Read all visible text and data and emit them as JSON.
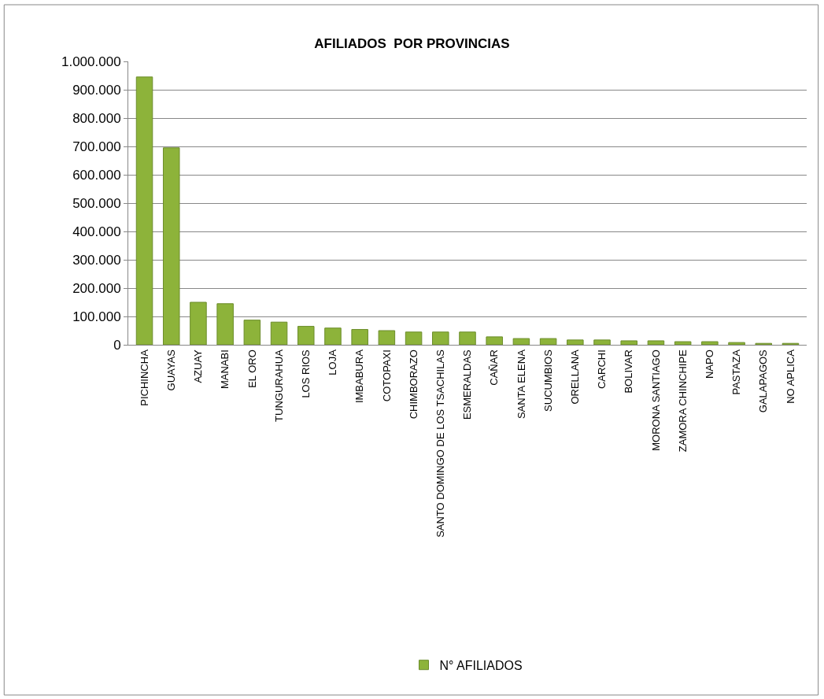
{
  "chart_data": {
    "type": "bar",
    "title": "AFILIADOS  POR PROVINCIAS",
    "categories": [
      "PICHINCHA",
      "GUAYAS",
      "AZUAY",
      "MANABI",
      "EL ORO",
      "TUNGURAHUA",
      "LOS RIOS",
      "LOJA",
      "IMBABURA",
      "COTOPAXI",
      "CHIMBORAZO",
      "SANTO DOMINGO DE LOS TSACHILAS",
      "ESMERALDAS",
      "CAÑAR",
      "SANTA ELENA",
      "SUCUMBIOS",
      "ORELLANA",
      "CARCHI",
      "BOLIVAR",
      "MORONA SANTIAGO",
      "ZAMORA CHINCHIPE",
      "NAPO",
      "PASTAZA",
      "GALAPAGOS",
      "NO APLICA"
    ],
    "series": [
      {
        "name": "N° AFILIADOS",
        "color": "#8db33a",
        "values": [
          945000,
          695000,
          150000,
          145000,
          87000,
          80000,
          65000,
          59000,
          54000,
          50000,
          45000,
          45000,
          45000,
          28000,
          22000,
          22000,
          17000,
          17000,
          14000,
          14000,
          11000,
          11000,
          8000,
          5000,
          5000
        ]
      }
    ],
    "ylim": [
      0,
      1000000
    ],
    "yticks": [
      {
        "value": 0,
        "label": "0"
      },
      {
        "value": 100000,
        "label": "100.000"
      },
      {
        "value": 200000,
        "label": "200.000"
      },
      {
        "value": 300000,
        "label": "300.000"
      },
      {
        "value": 400000,
        "label": "400.000"
      },
      {
        "value": 500000,
        "label": "500.000"
      },
      {
        "value": 600000,
        "label": "600.000"
      },
      {
        "value": 700000,
        "label": "700.000"
      },
      {
        "value": 800000,
        "label": "800.000"
      },
      {
        "value": 900000,
        "label": "900.000"
      },
      {
        "value": 1000000,
        "label": "1.000.000"
      }
    ],
    "grid": "y",
    "legend": "bottom"
  }
}
